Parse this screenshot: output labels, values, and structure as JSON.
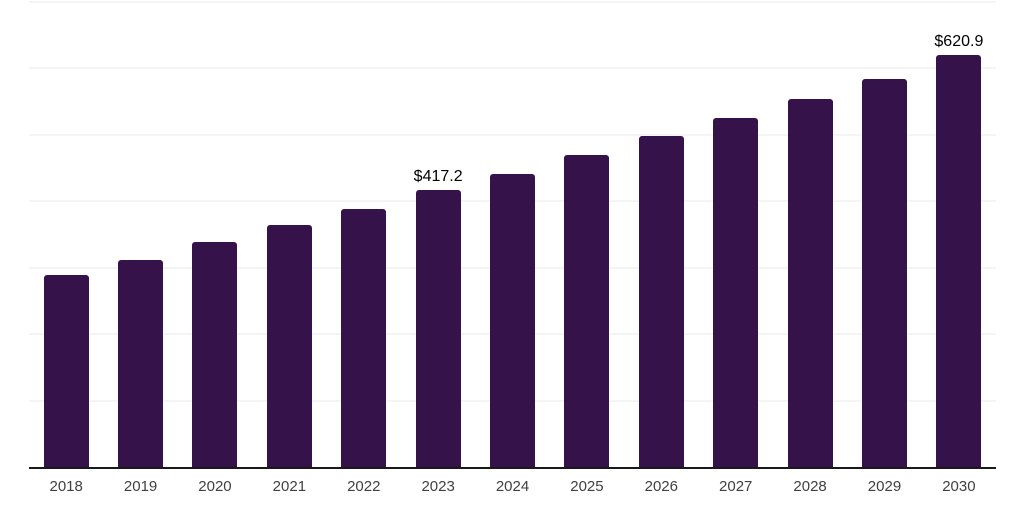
{
  "chart_data": {
    "type": "bar",
    "title": "",
    "xlabel": "",
    "ylabel": "",
    "categories": [
      "2018",
      "2019",
      "2020",
      "2021",
      "2022",
      "2023",
      "2024",
      "2025",
      "2026",
      "2027",
      "2028",
      "2029",
      "2030"
    ],
    "values": [
      288.6,
      311.9,
      339.1,
      364.9,
      387.8,
      417.2,
      441.8,
      470.0,
      498.3,
      525.1,
      553.3,
      584.5,
      620.9
    ],
    "bar_labels": [
      "",
      "",
      "",
      "",
      "",
      "$417.2",
      "",
      "",
      "",
      "",
      "",
      "",
      "$620.9"
    ],
    "ylim": [
      0,
      700
    ],
    "gridline_step": 100,
    "grid": true,
    "legend": false,
    "colors": {
      "bar": "#36124b",
      "gridline": "#f4f4f4",
      "axis_line": "#1a1a1a",
      "tick_label": "#404040",
      "value_label": "#000000",
      "background": "#ffffff"
    }
  }
}
